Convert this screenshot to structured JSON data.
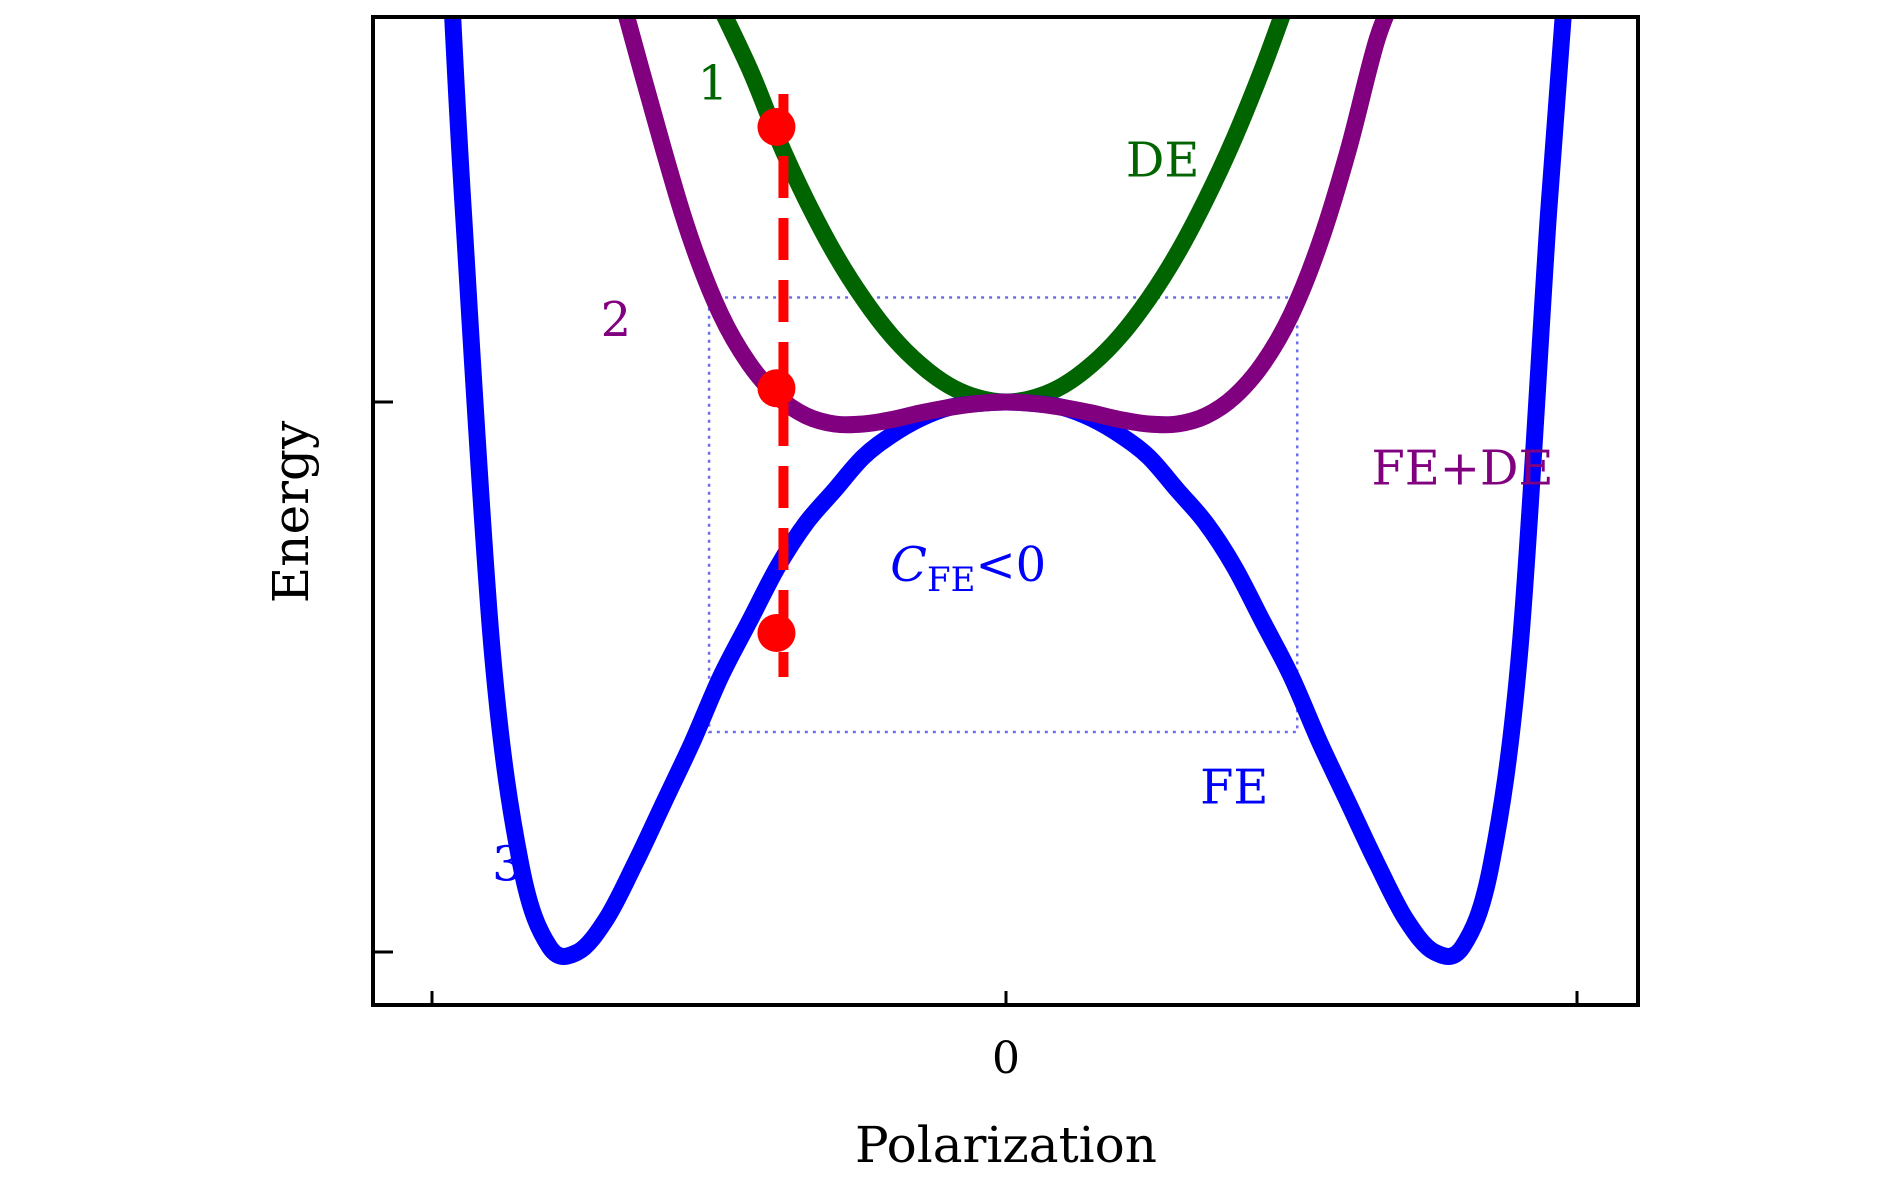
{
  "chart_data": {
    "type": "line",
    "title": "",
    "xlabel": "Polarization",
    "ylabel": "Energy",
    "x_tick_labels": [
      {
        "x": 0,
        "label": "0"
      }
    ],
    "xlim": [
      -1.0,
      1.0
    ],
    "ylim": [
      -1.05,
      0.72
    ],
    "grid": false,
    "legend": "none",
    "series": [
      {
        "name": "DE",
        "color": "#006400",
        "x": [
          -0.52,
          -0.45,
          -0.4,
          -0.35,
          -0.3,
          -0.25,
          -0.2,
          -0.15,
          -0.1,
          -0.05,
          0.0,
          0.05,
          0.1,
          0.15,
          0.2,
          0.25,
          0.3,
          0.35,
          0.4,
          0.45,
          0.5
        ],
        "y": [
          0.76,
          0.608,
          0.48,
          0.368,
          0.27,
          0.188,
          0.12,
          0.068,
          0.03,
          0.008,
          0.0,
          0.008,
          0.03,
          0.068,
          0.12,
          0.188,
          0.27,
          0.368,
          0.48,
          0.608,
          0.75
        ]
      },
      {
        "name": "FE+DE",
        "color": "#800080",
        "x": [
          -0.68,
          -0.6,
          -0.55,
          -0.5,
          -0.45,
          -0.4,
          -0.35,
          -0.3,
          -0.25,
          -0.2,
          -0.15,
          -0.1,
          -0.05,
          0.0,
          0.05,
          0.1,
          0.15,
          0.2,
          0.25,
          0.3,
          0.35,
          0.4,
          0.45,
          0.5,
          0.55,
          0.6,
          0.65,
          0.69
        ],
        "y": [
          0.76,
          0.46,
          0.29,
          0.16,
          0.07,
          0.01,
          -0.025,
          -0.04,
          -0.04,
          -0.032,
          -0.02,
          -0.01,
          -0.003,
          0.0,
          -0.003,
          -0.01,
          -0.02,
          -0.032,
          -0.04,
          -0.04,
          -0.025,
          0.01,
          0.07,
          0.16,
          0.29,
          0.46,
          0.66,
          0.76
        ]
      },
      {
        "name": "FE",
        "color": "#0000ff",
        "x": [
          -0.97,
          -0.95,
          -0.9,
          -0.85,
          -0.8,
          -0.75,
          -0.7,
          -0.65,
          -0.6,
          -0.55,
          -0.5,
          -0.45,
          -0.4,
          -0.35,
          -0.3,
          -0.25,
          -0.2,
          -0.15,
          -0.1,
          -0.05,
          0.0,
          0.05,
          0.1,
          0.15,
          0.2,
          0.25,
          0.3,
          0.35,
          0.4,
          0.45,
          0.5,
          0.55,
          0.6,
          0.65,
          0.7,
          0.75,
          0.8,
          0.85,
          0.9,
          0.95,
          0.98
        ],
        "y": [
          0.72,
          0.34,
          -0.45,
          -0.84,
          -0.99,
          -1.0,
          -0.94,
          -0.84,
          -0.73,
          -0.62,
          -0.5,
          -0.4,
          -0.3,
          -0.22,
          -0.16,
          -0.1,
          -0.06,
          -0.03,
          -0.01,
          -0.003,
          0.0,
          -0.003,
          -0.01,
          -0.03,
          -0.06,
          -0.1,
          -0.16,
          -0.22,
          -0.3,
          -0.4,
          -0.5,
          -0.62,
          -0.73,
          -0.84,
          -0.94,
          -1.0,
          -0.99,
          -0.84,
          -0.45,
          0.34,
          0.76
        ]
      }
    ],
    "transition": {
      "color": "#ff0000",
      "x": -0.395,
      "markers": [
        {
          "y": 0.5
        },
        {
          "y": 0.025
        },
        {
          "y": -0.42
        }
      ],
      "y_range": [
        -0.5,
        0.56
      ]
    },
    "region_box": {
      "color": "#7070ee",
      "x_range": [
        -0.52,
        0.51
      ],
      "y_range": [
        -0.6,
        0.19
      ]
    },
    "annotations": [
      {
        "text": "1",
        "x": -0.54,
        "y": 0.55,
        "color": "#006400"
      },
      {
        "text": "2",
        "x": -0.71,
        "y": 0.12,
        "color": "#800080"
      },
      {
        "text": "3",
        "x": -0.9,
        "y": -0.87,
        "color": "#0000ff"
      },
      {
        "text": "DE",
        "x": 0.21,
        "y": 0.41,
        "color": "#006400"
      },
      {
        "text": "FE+DE",
        "x": 0.64,
        "y": -0.15,
        "color": "#800080"
      },
      {
        "text": "FE",
        "x": 0.34,
        "y": -0.73,
        "color": "#0000ff"
      }
    ],
    "cfe_label": {
      "symbol": "C",
      "subscript": "FE",
      "relation": "<0",
      "x": -0.01,
      "y": -0.3,
      "color": "#0000ff"
    }
  }
}
